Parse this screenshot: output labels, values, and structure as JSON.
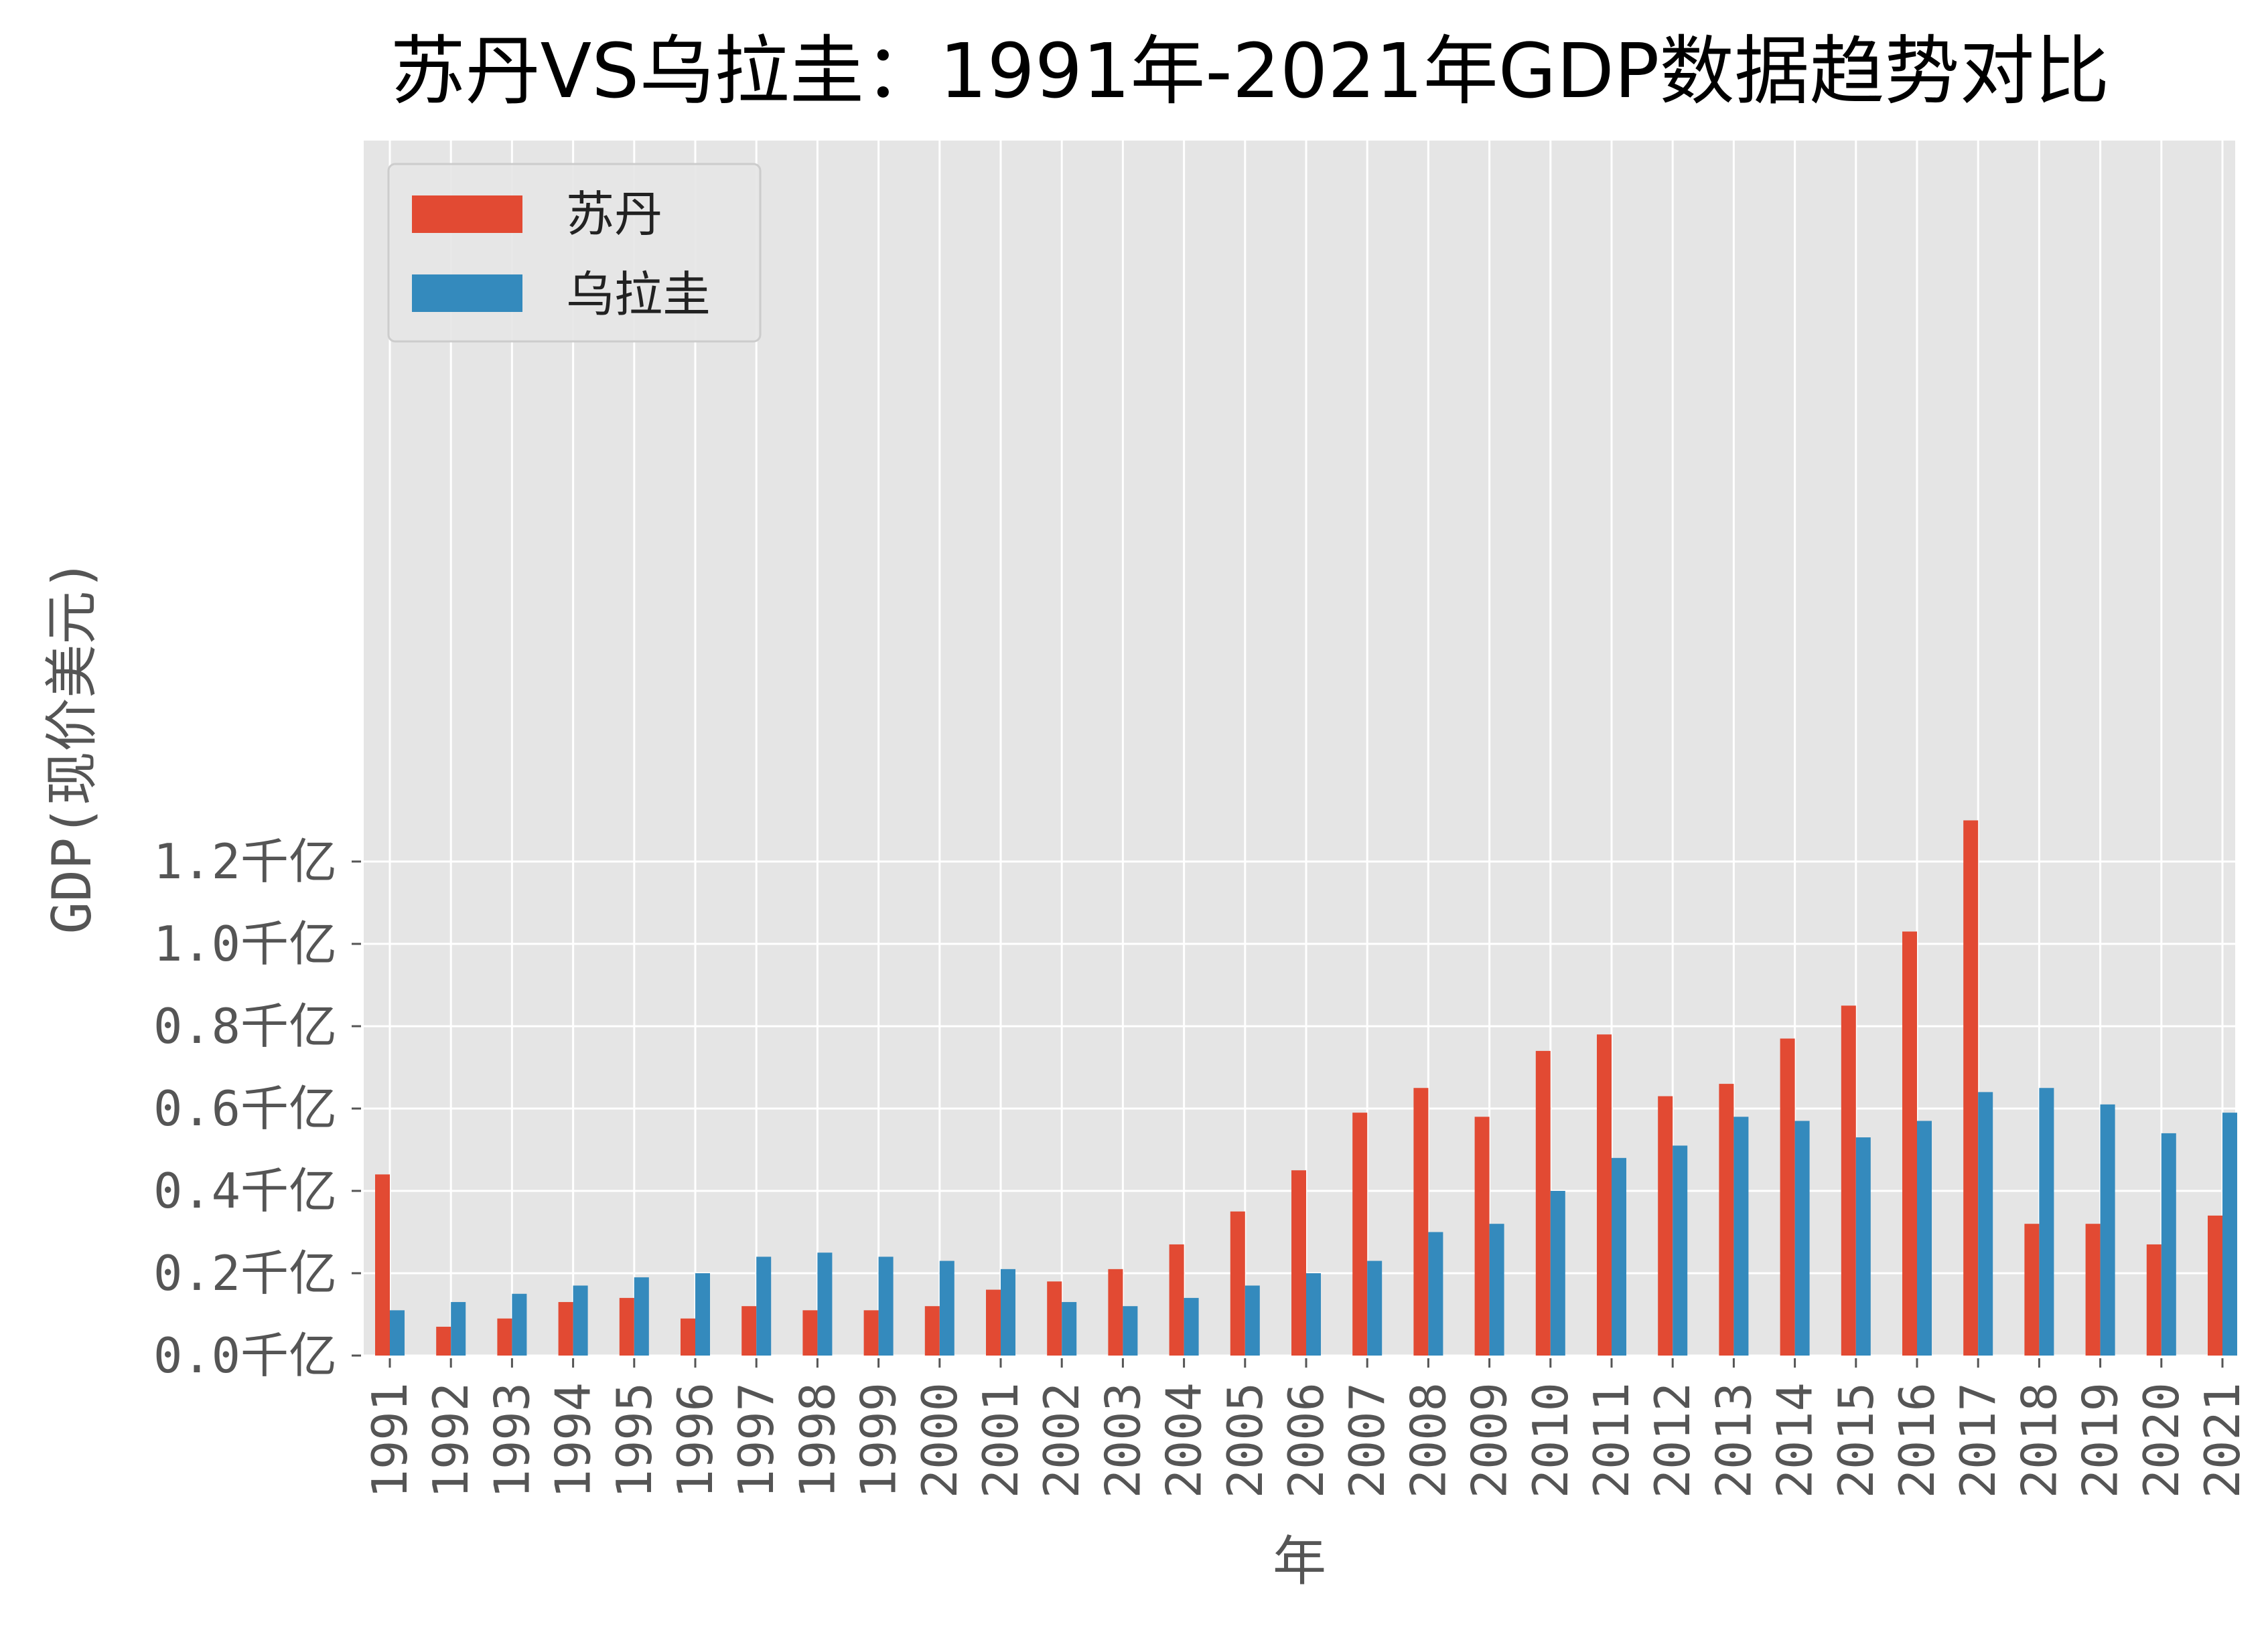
{
  "chart_data": {
    "type": "bar",
    "title": "苏丹VS乌拉圭：1991年-2021年GDP数据趋势对比",
    "xlabel": "年",
    "ylabel": "GDP(现价美元)",
    "ylim": [
      0,
      1.36
    ],
    "yticks": [
      {
        "value": 0.0,
        "label": "0.0千亿"
      },
      {
        "value": 0.2,
        "label": "0.2千亿"
      },
      {
        "value": 0.4,
        "label": "0.4千亿"
      },
      {
        "value": 0.6,
        "label": "0.6千亿"
      },
      {
        "value": 0.8,
        "label": "0.8千亿"
      },
      {
        "value": 1.0,
        "label": "1.0千亿"
      },
      {
        "value": 1.2,
        "label": "1.2千亿"
      }
    ],
    "grid": true,
    "legend_position": "top-left",
    "categories": [
      "1991",
      "1992",
      "1993",
      "1994",
      "1995",
      "1996",
      "1997",
      "1998",
      "1999",
      "2000",
      "2001",
      "2002",
      "2003",
      "2004",
      "2005",
      "2006",
      "2007",
      "2008",
      "2009",
      "2010",
      "2011",
      "2012",
      "2013",
      "2014",
      "2015",
      "2016",
      "2017",
      "2018",
      "2019",
      "2020",
      "2021"
    ],
    "series": [
      {
        "name": "苏丹",
        "color": "#E24A33",
        "values": [
          0.44,
          0.07,
          0.09,
          0.13,
          0.14,
          0.09,
          0.12,
          0.11,
          0.11,
          0.12,
          0.16,
          0.18,
          0.21,
          0.27,
          0.35,
          0.45,
          0.59,
          0.65,
          0.58,
          0.74,
          0.78,
          0.63,
          0.66,
          0.77,
          0.85,
          1.03,
          1.3,
          0.32,
          0.32,
          0.27,
          0.34
        ]
      },
      {
        "name": "乌拉圭",
        "color": "#348ABD",
        "values": [
          0.11,
          0.13,
          0.15,
          0.17,
          0.19,
          0.2,
          0.24,
          0.25,
          0.24,
          0.23,
          0.21,
          0.13,
          0.12,
          0.14,
          0.17,
          0.2,
          0.23,
          0.3,
          0.32,
          0.4,
          0.48,
          0.51,
          0.58,
          0.57,
          0.53,
          0.57,
          0.64,
          0.65,
          0.61,
          0.54,
          0.59
        ]
      }
    ]
  },
  "colors": {
    "plot_background": "#E5E5E5",
    "grid": "#FFFFFF"
  }
}
